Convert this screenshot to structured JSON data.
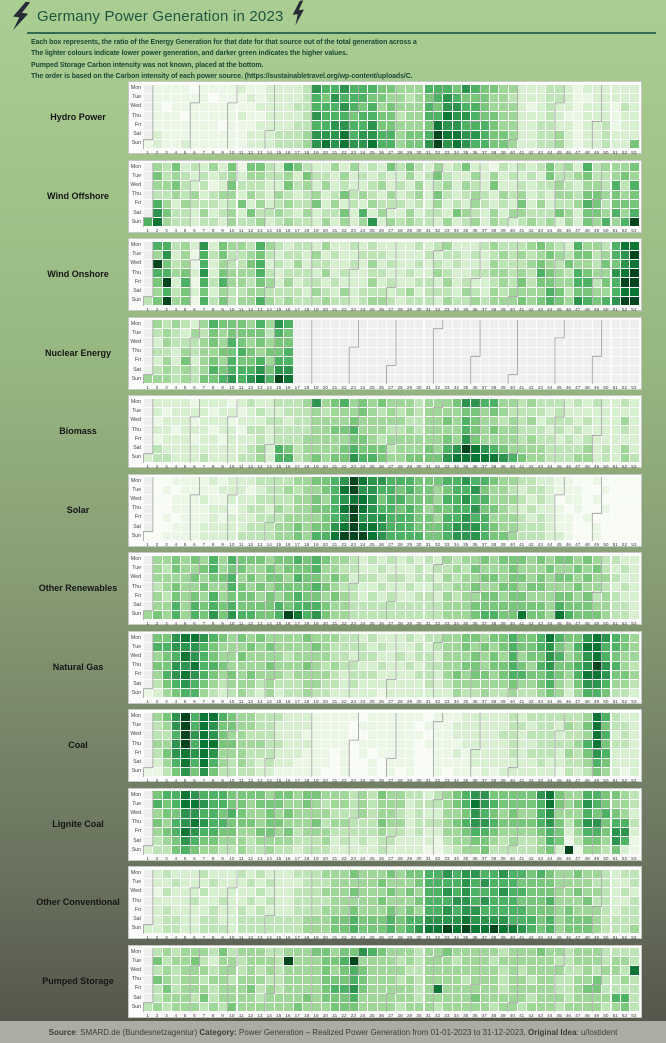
{
  "header": {
    "title": "Germany Power Generation in 2023",
    "description_lines": [
      "Each box represents, the ratio of the Energy Generation for that date for that source out of the total generation across a",
      "The lighter colours indicate lower power generation, and darker green indicates the higher values.",
      "Pumped Storage Carbon intensity was not known, placed at the bottom.",
      "The order is based on the Carbon intensity of each power source. (https://sustainabletravel.org/wp-content/uploads/C."
    ]
  },
  "footer": {
    "segments": [
      {
        "text": "Source",
        "bold": true
      },
      {
        "text": ": SMARD.de (Bundesnetzagentur) ",
        "bold": false
      },
      {
        "text": "Category:",
        "bold": true
      },
      {
        "text": " Power Generation – Realized Power Generation from 01-01-2023 to 31-12-2023, ",
        "bold": false
      },
      {
        "text": "Original Idea",
        "bold": true
      },
      {
        "text": ": u/lostident",
        "bold": false
      }
    ]
  },
  "colors": {
    "title_green": "#1e5741",
    "rule_green": "#2e6d52",
    "footer_bg": "#abaca3",
    "bolt_dark": "#262b36"
  },
  "chart_data": {
    "type": "heatmap",
    "title": "Germany Power Generation in 2023",
    "note": "12 calendar heatmaps (one per power source, ordered by carbon intensity). Rows = weekday Mon–Sun, columns = ISO week 1–53 of 2023. Cell value = intensity 0–9 of that day's share of total generation ('.' = no data; week 1 contains only Sunday Jan 1; Nuclear ends after week 16 due to the April 2023 shutdown).",
    "value_scale": "0 = lightest (lowest share) … 9 = darkest green (highest share), '.' = no data",
    "legend": "none",
    "week_count": 53,
    "day_labels": [
      "Mon",
      "Tue",
      "Wed",
      "Thu",
      "Fri",
      "Sat",
      "Sun"
    ],
    "palette": [
      "#f7fcf5",
      "#e9f7e4",
      "#d5efcf",
      "#bce4b5",
      "#9ed798",
      "#78c679",
      "#4eb264",
      "#2c944c",
      "#0c7634",
      "#00451c"
    ],
    "empty_color": "#edf0ec",
    "separator_color": "#9c9c9c",
    "month_starts": [
      {
        "month": "Jan",
        "week": 1,
        "dow": 6
      },
      {
        "month": "Feb",
        "week": 6,
        "dow": 2
      },
      {
        "month": "Mar",
        "week": 10,
        "dow": 2
      },
      {
        "month": "Apr",
        "week": 14,
        "dow": 5
      },
      {
        "month": "May",
        "week": 19,
        "dow": 0
      },
      {
        "month": "Jun",
        "week": 23,
        "dow": 3
      },
      {
        "month": "Jul",
        "week": 27,
        "dow": 5
      },
      {
        "month": "Aug",
        "week": 32,
        "dow": 1
      },
      {
        "month": "Sep",
        "week": 36,
        "dow": 4
      },
      {
        "month": "Oct",
        "week": 40,
        "dow": 6
      },
      {
        "month": "Nov",
        "week": 45,
        "dow": 2
      },
      {
        "month": "Dec",
        "week": 49,
        "dow": 4
      }
    ],
    "panels": [
      {
        "label": "Hydro Power",
        "slug": "hydro-power",
        "rows": [
          ".1111011112112222376676665544466657655442223321222222",
          ".1111110111212222365766655443456765554432223321122222",
          ".1011111111122223366676564544465776654442123221222132",
          ".1110111112112222376665665534466877655442223211222122",
          ".1111111011122223366776675544458776665442233221223122",
          ".2111111111222333477786776645569887765542233421223222",
          "12112111111222333478787786645579787665542233421223225"
        ]
      },
      {
        "label": "Wind Offshore",
        "slug": "wind-offshore",
        "rows": [
          ".4352324251553265322424232535324235221323235342634445",
          ".5343232342443342533242323224235322424232325334533454",
          ".4453231253332253424232234232423424325223233432443636",
          ".3343423442432432342353432423425323432434232443554545",
          ".6424333235242343352423243332324232432325242334653555",
          ".7533242342533432423352624224233254324244333542554646",
          "68433233243342343324242472434332423424323434242546469"
        ]
      },
      {
        "label": "Wind Onshore",
        "slug": "wind-onshore",
        "rows": [
          ".6634272544364323324223232222323422234333454326443688",
          ".4724163533453233242322333222232332323434345435534679",
          ".9534162433562324233223242322323232224333454354435578",
          ".6645272544463233324232233223224322334434365436544789",
          ".5926163644354242332322242322332423223435355446635699",
          ".4635252433443333243242333234233324324344446535544688",
          "35945163534464343334332344323332433434445456547656799"
        ]
      },
      {
        "label": "Nuclear Energy",
        "slug": "nuclear-energy",
        "rows": [
          ".434324655546476.....................................",
          ".343243545555365.....................................",
          ".243334546545455.....................................",
          ".332434455654556.....................................",
          ".242524546556466.....................................",
          ".343434656667577.....................................",
          "4443435567678698....................................."
        ]
      },
      {
        "label": "Biomass",
        "slug": "biomass",
        "rows": [
          ".2222122212322333474564545444344457766443433323232232",
          ".2122221221232233343444543434344445545433332322222222",
          ".1222122212223323344445444443344546544343423332322242",
          ".2212221221332333344556444334344446545443332323222232",
          ".1222122122232333444445543444444547544443433232322222",
          ".3222222222342653444456555344454679876544443333423242",
          "23322232223342663454557665445555788888765443334423243"
        ]
      },
      {
        "label": "Solar",
        "slug": "solar",
        "rows": [
          ".0011112122233334455679877666555667665443322110010000",
          ".0101111222123343445689776656554566754432332111001000",
          ".0011121122233334454678875665554667664443232011010000",
          ".0011112212332434455689876656545566755432322101001000",
          ".0101112122233344445679777666554667664443232110100000",
          ".0011122222333445455789887666555677765443332110010000",
          "00111122223333445466899987666655677765543332210010000"
        ]
      },
      {
        "label": "Other Renewables",
        "slug": "other-renewables",
        "rows": [
          ".4454546465554556565443232323232434454555454554543322",
          ".4354456455445455564433223222323343544454445445453232",
          ".4444545564545546554542332332332434455455454554544322",
          ".3454454465454555565433223223223344544554554445443232",
          ".4354546455545456554543232322332434455455444554534322",
          ".4464656565555656665443333333333444555555554655544332",
          "45464657576655698675443333333333444566558554865554332"
        ]
      },
      {
        "label": "Natural Gas",
        "slug": "natural-gas",
        "rows": [
          ".5578876545454444544433232223233445545565568655787654",
          ".6677765444545444454333323222323445454565567546886654",
          ".4568765445444434444332332232332444545464557645786544",
          ".5577866544445444543433223223233445545565467556797643",
          ".4678765454544434444323332222332454554566556546887554",
          ".3567654344434333443323222222232344444454456435776443",
          "12456643234324233433222221222222243343343345424665332"
        ]
      },
      {
        "label": "Coal",
        "slug": "coal",
        "rows": [
          ".4579688654433322211111011111101112222232333333486322",
          ".3479687554433222211110111111011122222233233243585332",
          ".3369787544333222111110011111101122222332333233486232",
          ".4479688554443322211110111111011112222232233334685332",
          ".3578787444333222111010101111001121222232333243576222",
          ".2468686434323221111010010111001111222222232233465222",
          "11357575333322111110010010101001011121222222132354212"
        ]
      },
      {
        "label": "Lignite Coal",
        "slug": "lignite-coal",
        "rows": [
          ".5668766655554554554443435443323456775555578544665543",
          ".6568876655455544543443434442333456876555568545765443",
          ".4557766565445454444333434432322445765454467444656542",
          ".5467876655545544453443335442333456776555567535775663",
          ".4568766554455453444333334332322445665444456524665772",
          ".3457655444344443334232323322221344554343346513554761",
          "23356544334334332333222223222211234453333345291443521"
        ]
      },
      {
        "label": "Other Conventional",
        "slug": "other-conventional",
        "rows": [
          ".2322232223232223334445444545566767766766565445443233",
          ".2232223222323222333444445444566667676665555444433223",
          ".1322232222232223334445444545466767666766555445443232",
          ".2222322322323223333444445444566677676665556444533223",
          ".2322223223232223334445444545466767766666555454443233",
          ".2332233223333333444556555656677778777766656455543333",
          "22332233323333333444556555656788989889887656455543334"
        ]
      },
      {
        "label": "Pumped Storage",
        "slug": "pumped-storage",
        "rows": [
          ".3434443534443344455455765444344544444344454434443333",
          ".5344532443444394445569444434344434443444444334443443",
          ".3434443443434344445456544443344444444343444433434438",
          ".5434434434443344445556544434344443444344344334453343",
          ".3534443444534344445667544444348444444344444334553333",
          ".3444353444434444545556444444344444544444344434444663",
          "34344434354444445444555444434443444443443444344443453"
        ]
      }
    ]
  }
}
